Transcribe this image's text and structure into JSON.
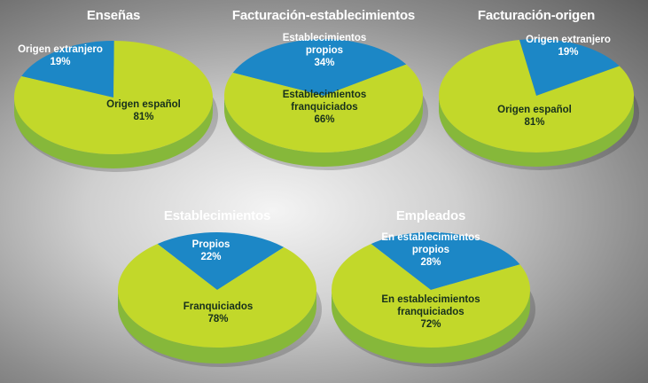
{
  "colors": {
    "green_top": "#c2d82a",
    "green_side": "#86b83a",
    "blue_top": "#1c87c6",
    "blue_side": "#0f5d8f"
  },
  "chart_data": [
    {
      "type": "pie",
      "title": "Enseñas",
      "slices": [
        {
          "label": [
            "Origen extranjero",
            "19%"
          ],
          "value": 19,
          "color": "blue"
        },
        {
          "label": [
            "Origen español",
            "81%"
          ],
          "value": 81,
          "color": "green"
        }
      ]
    },
    {
      "type": "pie",
      "title": "Facturación-establecimientos",
      "slices": [
        {
          "label": [
            "Establecimientos",
            "propios",
            "34%"
          ],
          "value": 34,
          "color": "blue"
        },
        {
          "label": [
            "Establecimientos",
            "franquiciados",
            "66%"
          ],
          "value": 66,
          "color": "green"
        }
      ]
    },
    {
      "type": "pie",
      "title": "Facturación-origen",
      "slices": [
        {
          "label": [
            "Origen extranjero",
            "19%"
          ],
          "value": 19,
          "color": "blue"
        },
        {
          "label": [
            "Origen español",
            "81%"
          ],
          "value": 81,
          "color": "green"
        }
      ]
    },
    {
      "type": "pie",
      "title": "Establecimientos",
      "slices": [
        {
          "label": [
            "Propios",
            "22%"
          ],
          "value": 22,
          "color": "blue"
        },
        {
          "label": [
            "Franquiciados",
            "78%"
          ],
          "value": 78,
          "color": "green"
        }
      ]
    },
    {
      "type": "pie",
      "title": "Empleados",
      "slices": [
        {
          "label": [
            "En establecimientos",
            "propios",
            "28%"
          ],
          "value": 28,
          "color": "blue"
        },
        {
          "label": [
            "En establecimientos",
            "franquiciados",
            "72%"
          ],
          "value": 72,
          "color": "green"
        }
      ]
    }
  ]
}
